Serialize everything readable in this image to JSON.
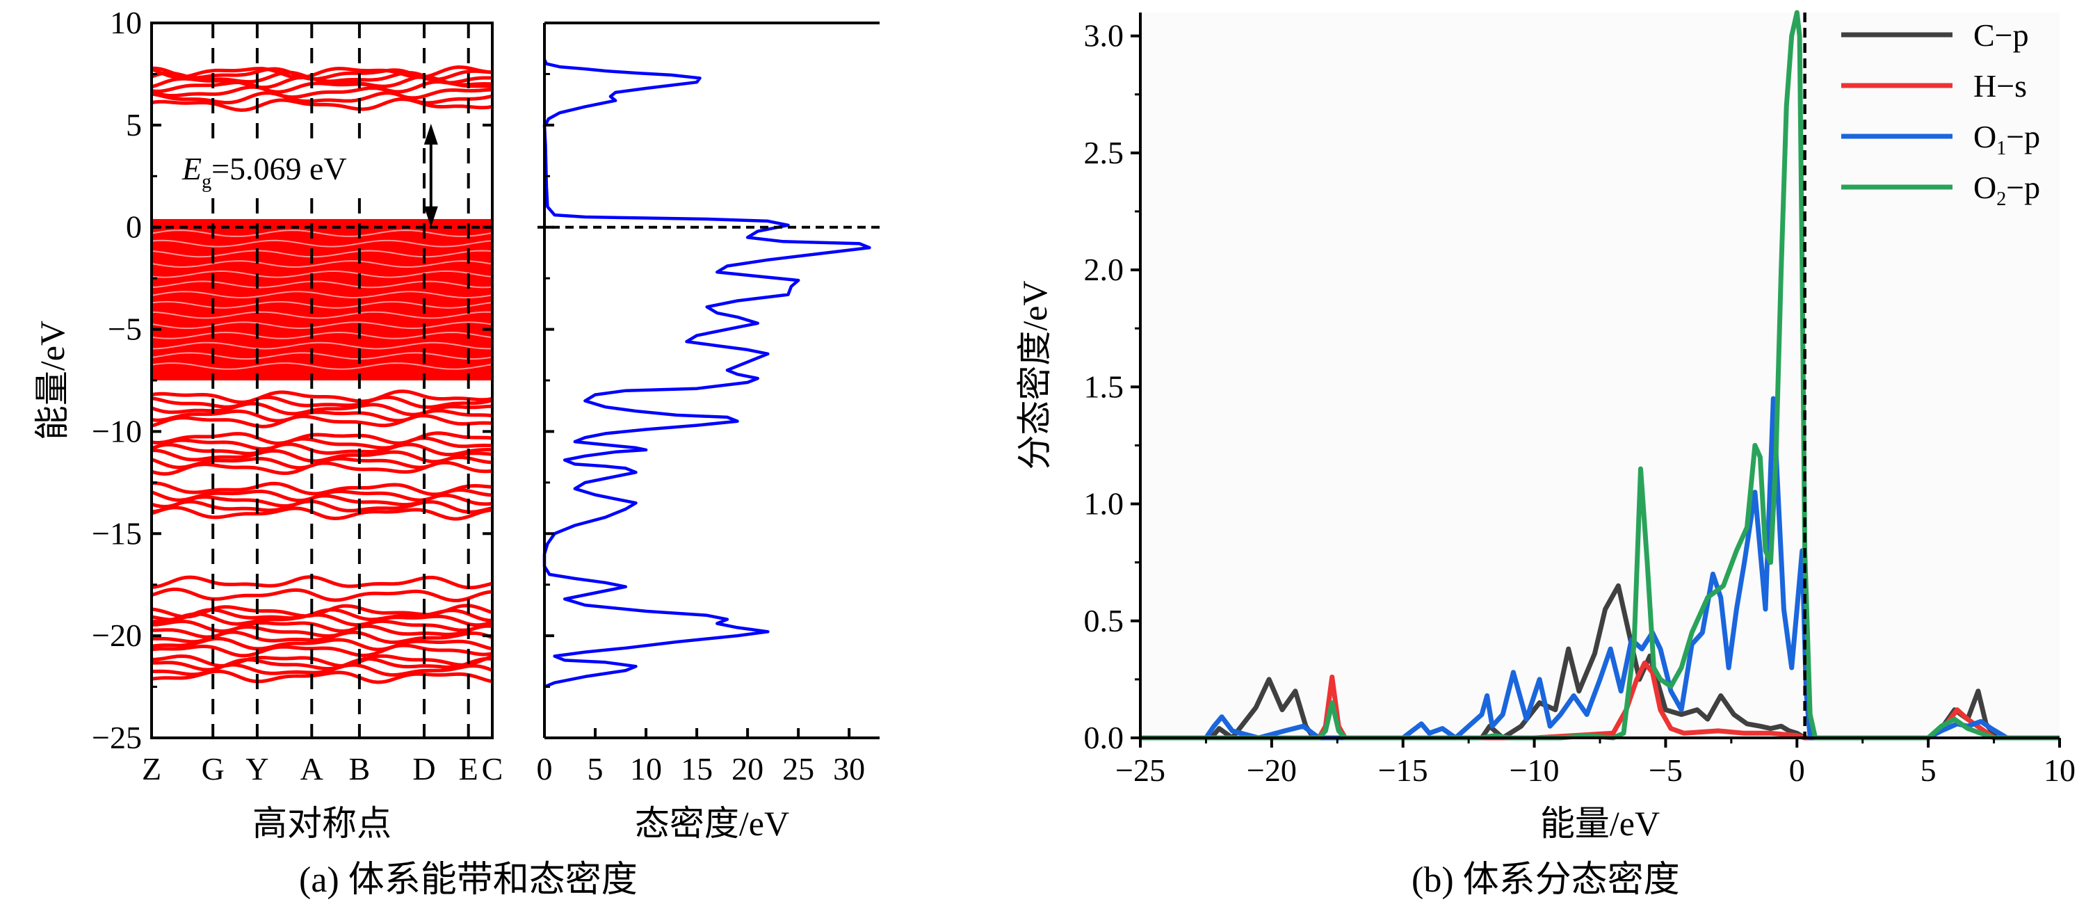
{
  "captions": {
    "a": "(a)  体系能带和态密度",
    "b": "(b)  体系分态密度"
  },
  "colors": {
    "band": "#ff0000",
    "dos": "#0000ff",
    "c_p": "#404040",
    "h_s": "#ee3333",
    "o1_p": "#1a66dd",
    "o2_p": "#2aa35a",
    "axis": "#000000"
  },
  "chart_data": [
    {
      "type": "line",
      "panel": "band-structure",
      "xlabel": "高对称点",
      "ylabel": "能量/eV",
      "ylim": [
        -25,
        10
      ],
      "yticks": [
        10,
        5,
        0,
        -5,
        -10,
        -15,
        -20,
        -25
      ],
      "ytick_labels": [
        "10",
        "5",
        "0",
        "−5",
        "−10",
        "−15",
        "−20",
        "−25"
      ],
      "kpoints": [
        "Z",
        "G",
        "Y",
        "A",
        "B",
        "D",
        "E",
        "C"
      ],
      "kpoint_positions": [
        0,
        0.18,
        0.31,
        0.47,
        0.61,
        0.8,
        0.93,
        1.0
      ],
      "fermi_level": 0,
      "annotation": {
        "symbol": "E",
        "subscript": "g",
        "text": "=5.069 eV",
        "from": 0,
        "to": 5.069
      },
      "bands": {
        "dense_ranges": [
          [
            -7.5,
            0.4
          ]
        ],
        "conduction": [
          6.0,
          6.3,
          6.6,
          6.9,
          7.1,
          7.3,
          7.5,
          7.6
        ],
        "groups": [
          [
            -8.3,
            -8.6,
            -8.9,
            -9.2,
            -9.5
          ],
          [
            -10.3,
            -10.6,
            -10.9,
            -11.2,
            -11.5,
            -11.8
          ],
          [
            -12.8,
            -13.1,
            -13.4,
            -13.7,
            -14.0
          ],
          [
            -17.4,
            -18.0
          ],
          [
            -18.8,
            -19.0,
            -19.2,
            -19.5,
            -19.8,
            -20.1,
            -20.4,
            -20.7
          ],
          [
            -21.2,
            -21.4,
            -21.7,
            -22.0
          ]
        ]
      }
    },
    {
      "type": "line",
      "panel": "total-dos",
      "xlabel": "态密度/eV",
      "xlim": [
        0,
        33
      ],
      "xticks": [
        0,
        5,
        10,
        15,
        20,
        25,
        30
      ],
      "ylim": [
        -25,
        10
      ],
      "fermi_level": 0,
      "series": [
        {
          "x": [
            0,
            0.2,
            1.5,
            4,
            6,
            9,
            12.5,
            15.3,
            15,
            10,
            7,
            6.5,
            7,
            4,
            1.5,
            0.4,
            0.2,
            0,
            0.1,
            0.2,
            0.3,
            1,
            4,
            10,
            16,
            22,
            24,
            21,
            20,
            23.5,
            31,
            32,
            27,
            22,
            18,
            17,
            21,
            25,
            24.3,
            24,
            19,
            16,
            17,
            19,
            21,
            18,
            15,
            14,
            17,
            20,
            22,
            20,
            18,
            19,
            21,
            20,
            15,
            8,
            5,
            4,
            6,
            9,
            13,
            18,
            19,
            15,
            10,
            6,
            4,
            3,
            5,
            7,
            9,
            10,
            7,
            4,
            2,
            3,
            6,
            8,
            9,
            6,
            4,
            3,
            5,
            7,
            9,
            8,
            6,
            3,
            1,
            0.3,
            0,
            0,
            0.5,
            3,
            6,
            8,
            5,
            2,
            4,
            10,
            16,
            18,
            17,
            19,
            22,
            19,
            13,
            8,
            4,
            1,
            2,
            6,
            9,
            8,
            4,
            1,
            0
          ],
          "y": [
            8.2,
            8.0,
            7.85,
            7.75,
            7.65,
            7.55,
            7.45,
            7.3,
            7.1,
            6.8,
            6.6,
            6.4,
            6.2,
            5.9,
            5.6,
            5.3,
            5.1,
            5.0,
            4.0,
            2.0,
            1.0,
            0.6,
            0.5,
            0.45,
            0.4,
            0.3,
            0.1,
            -0.2,
            -0.5,
            -0.7,
            -0.8,
            -1.0,
            -1.3,
            -1.6,
            -1.9,
            -2.2,
            -2.4,
            -2.6,
            -2.9,
            -3.3,
            -3.6,
            -3.9,
            -4.2,
            -4.4,
            -4.7,
            -5.0,
            -5.3,
            -5.6,
            -5.8,
            -6.0,
            -6.2,
            -6.6,
            -7.0,
            -7.2,
            -7.4,
            -7.6,
            -7.9,
            -8.0,
            -8.2,
            -8.5,
            -8.8,
            -9.0,
            -9.2,
            -9.3,
            -9.5,
            -9.7,
            -9.9,
            -10.1,
            -10.3,
            -10.5,
            -10.6,
            -10.7,
            -10.8,
            -10.9,
            -11.0,
            -11.2,
            -11.4,
            -11.6,
            -11.7,
            -11.8,
            -12.0,
            -12.3,
            -12.5,
            -12.8,
            -13.1,
            -13.3,
            -13.5,
            -13.8,
            -14.2,
            -14.6,
            -15.0,
            -15.5,
            -16.0,
            -16.6,
            -17.0,
            -17.2,
            -17.4,
            -17.6,
            -17.9,
            -18.2,
            -18.5,
            -18.8,
            -19.0,
            -19.2,
            -19.4,
            -19.6,
            -19.8,
            -20.0,
            -20.3,
            -20.6,
            -20.8,
            -21.0,
            -21.2,
            -21.3,
            -21.5,
            -21.7,
            -22.0,
            -22.3,
            -22.5
          ]
        }
      ]
    },
    {
      "type": "line",
      "panel": "partial-dos",
      "xlabel": "能量/eV",
      "ylabel": "分态密度/eV",
      "xlim": [
        -25,
        10
      ],
      "ylim": [
        0,
        3.1
      ],
      "xticks": [
        -25,
        -20,
        -15,
        -10,
        -5,
        0,
        5,
        10
      ],
      "xtick_labels": [
        "−25",
        "−20",
        "−15",
        "−10",
        "−5",
        "0",
        "5",
        "10"
      ],
      "yticks": [
        0,
        0.5,
        1.0,
        1.5,
        2.0,
        2.5,
        3.0
      ],
      "ytick_labels": [
        "0.0",
        "0.5",
        "1.0",
        "1.5",
        "2.0",
        "2.5",
        "3.0"
      ],
      "fermi_level": 0.3,
      "legend": "top-right",
      "series": [
        {
          "name": "C−p",
          "key": "c_p",
          "x": [
            -25,
            -23,
            -22.3,
            -22,
            -21.5,
            -20.6,
            -20.1,
            -19.6,
            -19.1,
            -18.7,
            -18.4,
            -17.5,
            -15,
            -12,
            -11.7,
            -11.2,
            -10.5,
            -9.8,
            -9.2,
            -8.7,
            -8.3,
            -7.7,
            -7.3,
            -6.8,
            -6.4,
            -6.0,
            -5.6,
            -5.0,
            -4.4,
            -3.8,
            -3.4,
            -2.9,
            -2.4,
            -1.9,
            -1.4,
            -1.0,
            -0.6,
            -0.3,
            0,
            0.3,
            0.6,
            5,
            5.5,
            6.0,
            6.5,
            6.9,
            7.2,
            7.6,
            8.0,
            10
          ],
          "y": [
            0,
            0,
            0,
            0.04,
            0,
            0.13,
            0.25,
            0.12,
            0.2,
            0.05,
            0,
            0,
            0,
            0,
            0.05,
            0,
            0.05,
            0.15,
            0.12,
            0.38,
            0.2,
            0.36,
            0.55,
            0.65,
            0.45,
            0.25,
            0.35,
            0.12,
            0.1,
            0.12,
            0.08,
            0.18,
            0.1,
            0.06,
            0.05,
            0.04,
            0.05,
            0.03,
            0.02,
            0,
            0,
            0,
            0.04,
            0.12,
            0.08,
            0.2,
            0.06,
            0,
            0,
            0
          ]
        },
        {
          "name": "H−s",
          "key": "h_s",
          "x": [
            -25,
            -18.2,
            -17.95,
            -17.7,
            -17.45,
            -17.2,
            -10,
            -7,
            -6.5,
            -6.1,
            -5.8,
            -5.5,
            -5.2,
            -4.8,
            -4.3,
            -3,
            -2,
            -1,
            0,
            0.3,
            5,
            5.7,
            6.1,
            6.5,
            7,
            7.5,
            10
          ],
          "y": [
            0,
            0,
            0.05,
            0.26,
            0.05,
            0,
            0,
            0.02,
            0.12,
            0.25,
            0.32,
            0.28,
            0.12,
            0.04,
            0.02,
            0.03,
            0.02,
            0.02,
            0.01,
            0,
            0,
            0.06,
            0.12,
            0.08,
            0.04,
            0,
            0
          ]
        },
        {
          "name": "O₁−p",
          "key": "o1_p",
          "pretty_name": {
            "base": "O",
            "sub": "1",
            "rest": "−p"
          },
          "x": [
            -25,
            -22.5,
            -22.2,
            -21.9,
            -21.5,
            -20.5,
            -19.5,
            -18.8,
            -18.2,
            -17,
            -15,
            -14.3,
            -14.0,
            -13.5,
            -13,
            -12,
            -11.8,
            -11.6,
            -11.2,
            -10.8,
            -10.3,
            -9.8,
            -9.4,
            -9.0,
            -8.5,
            -8.0,
            -7.5,
            -7.1,
            -6.7,
            -6.3,
            -5.9,
            -5.5,
            -5.2,
            -4.8,
            -4.4,
            -4.0,
            -3.6,
            -3.2,
            -2.9,
            -2.6,
            -2.3,
            -2.0,
            -1.6,
            -1.2,
            -0.9,
            -0.5,
            -0.2,
            0,
            0.2,
            0.35,
            0.5,
            5,
            5.5,
            6.1,
            6.5,
            7,
            7.4,
            8,
            10
          ],
          "y": [
            0,
            0,
            0.05,
            0.09,
            0.03,
            0,
            0.03,
            0.05,
            0,
            0,
            0,
            0.06,
            0.02,
            0.04,
            0,
            0.1,
            0.18,
            0.05,
            0.1,
            0.28,
            0.08,
            0.25,
            0.05,
            0.1,
            0.18,
            0.1,
            0.25,
            0.38,
            0.2,
            0.42,
            0.38,
            0.45,
            0.38,
            0.2,
            0.12,
            0.4,
            0.45,
            0.7,
            0.6,
            0.3,
            0.55,
            0.75,
            1.05,
            0.55,
            1.45,
            0.55,
            0.3,
            0.55,
            0.8,
            0.2,
            0,
            0,
            0.03,
            0.06,
            0.05,
            0.07,
            0.04,
            0,
            0
          ]
        },
        {
          "name": "O₂−p",
          "key": "o2_p",
          "pretty_name": {
            "base": "O",
            "sub": "2",
            "rest": "−p"
          },
          "x": [
            -25,
            -18.2,
            -17.95,
            -17.7,
            -17.45,
            -17.2,
            -12,
            -11.5,
            -11,
            -9,
            -8,
            -7,
            -6.6,
            -6.2,
            -5.95,
            -5.7,
            -5.45,
            -5.2,
            -4.8,
            -4.4,
            -4.0,
            -3.4,
            -2.8,
            -2.3,
            -1.9,
            -1.6,
            -1.4,
            -1.2,
            -1.0,
            -0.8,
            -0.6,
            -0.4,
            -0.2,
            0,
            0.1,
            0.2,
            0.3,
            0.5,
            0.7,
            5,
            5.5,
            6.0,
            6.5,
            7,
            7.5,
            10
          ],
          "y": [
            0,
            0,
            0.03,
            0.15,
            0.03,
            0,
            0,
            0.01,
            0,
            0,
            0.01,
            0,
            0.02,
            0.4,
            1.15,
            0.75,
            0.3,
            0.25,
            0.22,
            0.3,
            0.45,
            0.6,
            0.65,
            0.8,
            0.9,
            1.25,
            1.2,
            0.8,
            0.75,
            1.2,
            2.0,
            2.7,
            3.0,
            3.1,
            3.0,
            2.0,
            0.8,
            0.1,
            0,
            0,
            0.05,
            0.08,
            0.04,
            0.02,
            0,
            0
          ]
        }
      ]
    }
  ]
}
